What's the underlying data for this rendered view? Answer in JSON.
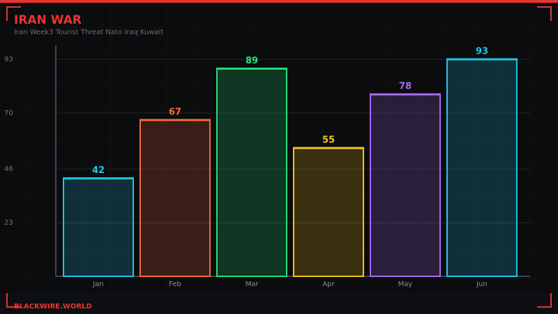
{
  "header": {
    "title": "IRAN WAR",
    "subtitle": "Iran Week3 Tourist Threat Nato Iraq Kuwait"
  },
  "footer": {
    "brand": "BLACKWIRE.WORLD"
  },
  "chart_data": {
    "type": "bar",
    "categories": [
      "Jan",
      "Feb",
      "Mar",
      "Apr",
      "May",
      "Jun"
    ],
    "values": [
      42,
      67,
      89,
      55,
      78,
      93
    ],
    "colors": [
      "#22c5e8",
      "#f26b3a",
      "#22e07a",
      "#f5c518",
      "#a66cf0",
      "#22c5e8"
    ],
    "ylim": [
      0,
      99
    ],
    "yticks": [
      23,
      46,
      70,
      93
    ],
    "grid": true
  }
}
